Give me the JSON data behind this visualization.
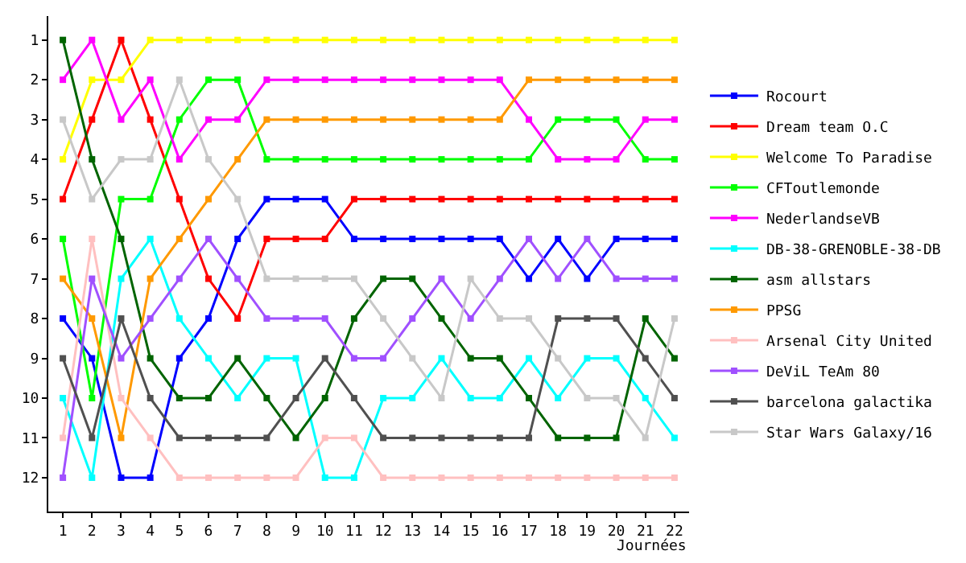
{
  "chart_data": {
    "type": "line",
    "xlabel": "Journées",
    "marker": "square",
    "line_style": "solid",
    "grid": false,
    "legend": "right",
    "x": [
      1,
      2,
      3,
      4,
      5,
      6,
      7,
      8,
      9,
      10,
      11,
      12,
      13,
      14,
      15,
      16,
      17,
      18,
      19,
      20,
      21,
      22
    ],
    "xlim": [
      0.5,
      22.5
    ],
    "xticks": [
      1,
      2,
      3,
      4,
      5,
      6,
      7,
      8,
      9,
      10,
      11,
      12,
      13,
      14,
      15,
      16,
      17,
      18,
      19,
      20,
      21,
      22
    ],
    "ylim": [
      12.85,
      0.4
    ],
    "yticks": [
      1,
      2,
      3,
      4,
      5,
      6,
      7,
      8,
      9,
      10,
      11,
      12
    ],
    "series": [
      {
        "name": "Rocourt",
        "color": "#0000ff",
        "values": [
          8,
          9,
          12,
          12,
          9,
          8,
          6,
          5,
          5,
          5,
          6,
          6,
          6,
          6,
          6,
          6,
          7,
          6,
          7,
          6,
          6,
          6
        ]
      },
      {
        "name": "Dream team O.C",
        "color": "#ff0000",
        "values": [
          5,
          3,
          1,
          3,
          5,
          7,
          8,
          6,
          6,
          6,
          5,
          5,
          5,
          5,
          5,
          5,
          5,
          5,
          5,
          5,
          5,
          5
        ]
      },
      {
        "name": "Welcome To Paradise",
        "color": "#ffff00",
        "values": [
          4,
          2,
          2,
          1,
          1,
          1,
          1,
          1,
          1,
          1,
          1,
          1,
          1,
          1,
          1,
          1,
          1,
          1,
          1,
          1,
          1,
          1
        ]
      },
      {
        "name": "CFToutlemonde",
        "color": "#00ff00",
        "values": [
          6,
          10,
          5,
          5,
          3,
          2,
          2,
          4,
          4,
          4,
          4,
          4,
          4,
          4,
          4,
          4,
          4,
          3,
          3,
          3,
          4,
          4
        ]
      },
      {
        "name": "NederlandseVB",
        "color": "#ff00ff",
        "values": [
          2,
          1,
          3,
          2,
          4,
          3,
          3,
          2,
          2,
          2,
          2,
          2,
          2,
          2,
          2,
          2,
          3,
          4,
          4,
          4,
          3,
          3
        ]
      },
      {
        "name": "DB-38-GRENOBLE-38-DB",
        "color": "#00ffff",
        "values": [
          10,
          12,
          7,
          6,
          8,
          9,
          10,
          9,
          9,
          12,
          12,
          10,
          10,
          9,
          10,
          10,
          9,
          10,
          9,
          9,
          10,
          11
        ]
      },
      {
        "name": "asm allstars",
        "color": "#006400",
        "values": [
          1,
          4,
          6,
          9,
          10,
          10,
          9,
          10,
          11,
          10,
          8,
          7,
          7,
          8,
          9,
          9,
          10,
          11,
          11,
          11,
          8,
          9
        ]
      },
      {
        "name": "PPSG",
        "color": "#ff9900",
        "values": [
          7,
          8,
          11,
          7,
          6,
          5,
          4,
          3,
          3,
          3,
          3,
          3,
          3,
          3,
          3,
          3,
          2,
          2,
          2,
          2,
          2,
          2
        ]
      },
      {
        "name": "Arsenal City United",
        "color": "#ffc0c0",
        "values": [
          11,
          6,
          10,
          11,
          12,
          12,
          12,
          12,
          12,
          11,
          11,
          12,
          12,
          12,
          12,
          12,
          12,
          12,
          12,
          12,
          12,
          12
        ]
      },
      {
        "name": "DeViL TeAm 80",
        "color": "#a050ff",
        "values": [
          12,
          7,
          9,
          8,
          7,
          6,
          7,
          8,
          8,
          8,
          9,
          9,
          8,
          7,
          8,
          7,
          6,
          7,
          6,
          7,
          7,
          7
        ]
      },
      {
        "name": "barcelona galactika",
        "color": "#505050",
        "values": [
          9,
          11,
          8,
          10,
          11,
          11,
          11,
          11,
          10,
          9,
          10,
          11,
          11,
          11,
          11,
          11,
          11,
          8,
          8,
          8,
          9,
          10
        ]
      },
      {
        "name": "Star Wars Galaxy/16",
        "color": "#c8c8c8",
        "values": [
          3,
          5,
          4,
          4,
          2,
          4,
          5,
          7,
          7,
          7,
          7,
          8,
          9,
          10,
          7,
          8,
          8,
          9,
          10,
          10,
          11,
          8
        ]
      }
    ]
  }
}
